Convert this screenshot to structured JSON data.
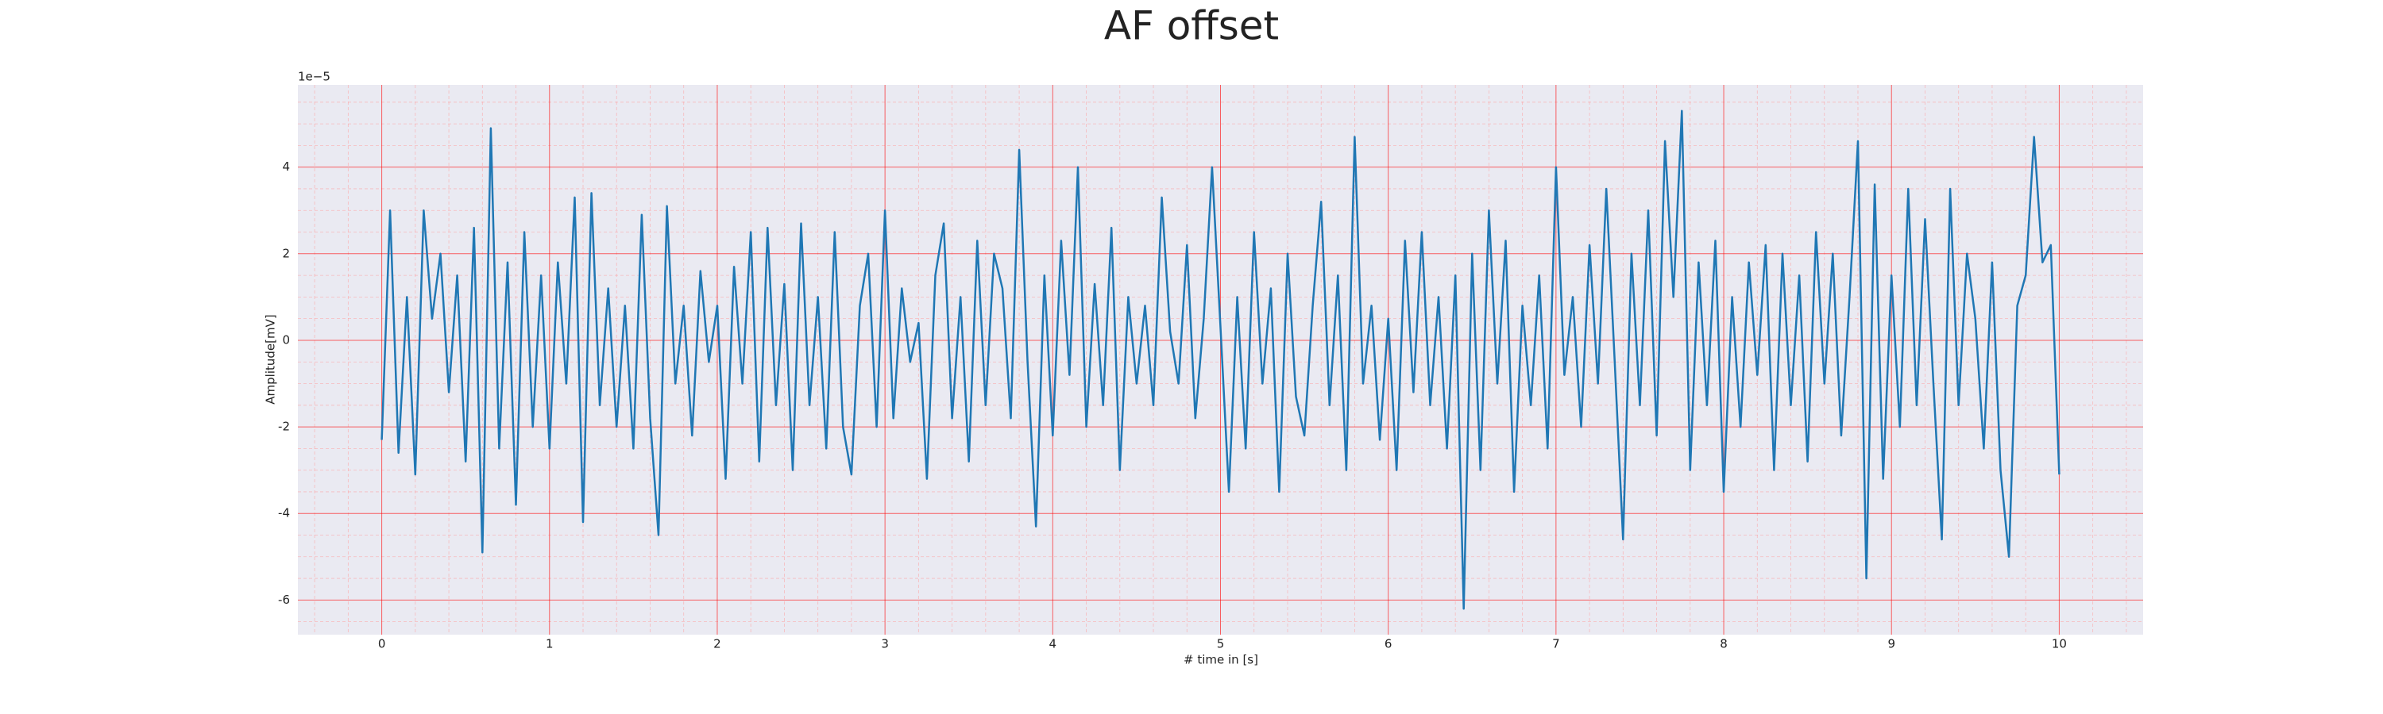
{
  "chart_data": {
    "type": "line",
    "title": "AF offset",
    "xlabel": "# time in [s]",
    "ylabel": "Amplitude[mV]",
    "y_offset_label": "1e−5",
    "x": [
      0,
      0.05,
      0.1,
      0.15,
      0.2,
      0.25,
      0.3,
      0.35,
      0.4,
      0.45,
      0.5,
      0.55,
      0.6,
      0.65,
      0.7,
      0.75,
      0.8,
      0.85,
      0.9,
      0.95,
      1,
      1.05,
      1.1,
      1.15,
      1.2,
      1.25,
      1.3,
      1.35,
      1.4,
      1.45,
      1.5,
      1.55,
      1.6,
      1.65,
      1.7,
      1.75,
      1.8,
      1.85,
      1.9,
      1.95,
      2,
      2.05,
      2.1,
      2.15,
      2.2,
      2.25,
      2.3,
      2.35,
      2.4,
      2.45,
      2.5,
      2.55,
      2.6,
      2.65,
      2.7,
      2.75,
      2.8,
      2.85,
      2.9,
      2.95,
      3,
      3.05,
      3.1,
      3.15,
      3.2,
      3.25,
      3.3,
      3.35,
      3.4,
      3.45,
      3.5,
      3.55,
      3.6,
      3.65,
      3.7,
      3.75,
      3.8,
      3.85,
      3.9,
      3.95,
      4,
      4.05,
      4.1,
      4.15,
      4.2,
      4.25,
      4.3,
      4.35,
      4.4,
      4.45,
      4.5,
      4.55,
      4.6,
      4.65,
      4.7,
      4.75,
      4.8,
      4.85,
      4.9,
      4.95,
      5,
      5.05,
      5.1,
      5.15,
      5.2,
      5.25,
      5.3,
      5.35,
      5.4,
      5.45,
      5.5,
      5.55,
      5.6,
      5.65,
      5.7,
      5.75,
      5.8,
      5.85,
      5.9,
      5.95,
      6,
      6.05,
      6.1,
      6.15,
      6.2,
      6.25,
      6.3,
      6.35,
      6.4,
      6.45,
      6.5,
      6.55,
      6.6,
      6.65,
      6.7,
      6.75,
      6.8,
      6.85,
      6.9,
      6.95,
      7,
      7.05,
      7.1,
      7.15,
      7.2,
      7.25,
      7.3,
      7.35,
      7.4,
      7.45,
      7.5,
      7.55,
      7.6,
      7.65,
      7.7,
      7.75,
      7.8,
      7.85,
      7.9,
      7.95,
      8,
      8.05,
      8.1,
      8.15,
      8.2,
      8.25,
      8.3,
      8.35,
      8.4,
      8.45,
      8.5,
      8.55,
      8.6,
      8.65,
      8.7,
      8.75,
      8.8,
      8.85,
      8.9,
      8.95,
      9,
      9.05,
      9.1,
      9.15,
      9.2,
      9.25,
      9.3,
      9.35,
      9.4,
      9.45,
      9.5,
      9.55,
      9.6,
      9.65,
      9.7,
      9.75,
      9.8,
      9.85,
      9.9,
      9.95,
      10
    ],
    "series": [
      {
        "color": "#1f77b4",
        "values": [
          -2.3,
          3.0,
          -2.6,
          1.0,
          -3.1,
          3.0,
          0.5,
          2.0,
          -1.2,
          1.5,
          -2.8,
          2.6,
          -4.9,
          4.9,
          -2.5,
          1.8,
          -3.8,
          2.5,
          -2.0,
          1.5,
          -2.5,
          1.8,
          -1.0,
          3.3,
          -4.2,
          3.4,
          -1.5,
          1.2,
          -2.0,
          0.8,
          -2.5,
          2.9,
          -1.8,
          -4.5,
          3.1,
          -1.0,
          0.8,
          -2.2,
          1.6,
          -0.5,
          0.8,
          -3.2,
          1.7,
          -1.0,
          2.5,
          -2.8,
          2.6,
          -1.5,
          1.3,
          -3.0,
          2.7,
          -1.5,
          1.0,
          -2.5,
          2.5,
          -2.0,
          -3.1,
          0.8,
          2.0,
          -2.0,
          3.0,
          -1.8,
          1.2,
          -0.5,
          0.4,
          -3.2,
          1.5,
          2.7,
          -1.8,
          1.0,
          -2.8,
          2.3,
          -1.5,
          2.0,
          1.2,
          -1.8,
          4.4,
          -0.5,
          -4.3,
          1.5,
          -2.2,
          2.3,
          -0.8,
          4.0,
          -2.0,
          1.3,
          -1.5,
          2.6,
          -3.0,
          1.0,
          -1.0,
          0.8,
          -1.5,
          3.3,
          0.2,
          -1.0,
          2.2,
          -1.8,
          0.5,
          4.0,
          0.3,
          -3.5,
          1.0,
          -2.5,
          2.5,
          -1.0,
          1.2,
          -3.5,
          2.0,
          -1.3,
          -2.2,
          0.8,
          3.2,
          -1.5,
          1.5,
          -3.0,
          4.7,
          -1.0,
          0.8,
          -2.3,
          0.5,
          -3.0,
          2.3,
          -1.2,
          2.5,
          -1.5,
          1.0,
          -2.5,
          1.5,
          -6.2,
          2.0,
          -3.0,
          3.0,
          -1.0,
          2.3,
          -3.5,
          0.8,
          -1.5,
          1.5,
          -2.5,
          4.0,
          -0.8,
          1.0,
          -2.0,
          2.2,
          -1.0,
          3.5,
          -0.5,
          -4.6,
          2.0,
          -1.5,
          3.0,
          -2.2,
          4.6,
          1.0,
          5.3,
          -3.0,
          1.8,
          -1.5,
          2.3,
          -3.5,
          1.0,
          -2.0,
          1.8,
          -0.8,
          2.2,
          -3.0,
          2.0,
          -1.5,
          1.5,
          -2.8,
          2.5,
          -1.0,
          2.0,
          -2.2,
          1.0,
          4.6,
          -5.5,
          3.6,
          -3.2,
          1.5,
          -2.0,
          3.5,
          -1.5,
          2.8,
          -1.0,
          -4.6,
          3.5,
          -1.5,
          2.0,
          0.5,
          -2.5,
          1.8,
          -3.0,
          -5.0,
          0.8,
          1.5,
          4.7,
          1.8,
          2.2,
          -3.1
        ]
      }
    ],
    "xlim": [
      -0.5,
      10.5
    ],
    "xticks": [
      0,
      1,
      2,
      3,
      4,
      5,
      6,
      7,
      8,
      9,
      10
    ],
    "ylim": [
      -6.8,
      5.9
    ],
    "yticks": [
      -6,
      -4,
      -2,
      0,
      2,
      4
    ],
    "grid": true,
    "minor_grid": true
  }
}
